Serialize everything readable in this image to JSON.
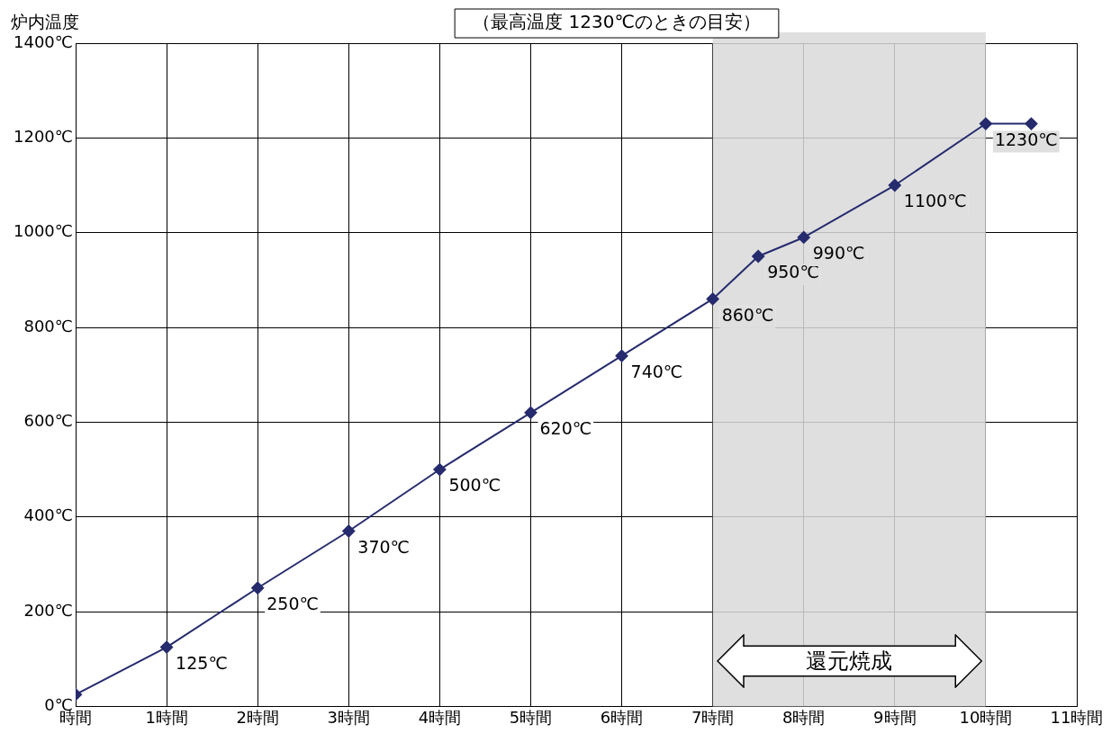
{
  "chart_data": {
    "type": "line",
    "title": "（最高温度 1230℃のときの目安）",
    "ylabel": "炉内温度",
    "x": [
      0,
      1,
      2,
      3,
      4,
      5,
      6,
      7,
      7.5,
      8,
      9,
      10,
      10.5
    ],
    "series": [
      {
        "color": "#262b6e",
        "values": [
          25,
          125,
          250,
          370,
          500,
          620,
          740,
          860,
          950,
          990,
          1100,
          1230,
          1230
        ],
        "value_labels": [
          null,
          "125℃",
          "250℃",
          "370℃",
          "500℃",
          "620℃",
          "740℃",
          "860℃",
          "950℃",
          "990℃",
          "1100℃",
          "1230℃",
          null
        ]
      }
    ],
    "xlim": [
      0,
      11
    ],
    "xticks": [
      {
        "value": 0,
        "label": "時間"
      },
      {
        "value": 1,
        "label": "1時間"
      },
      {
        "value": 2,
        "label": "2時間"
      },
      {
        "value": 3,
        "label": "3時間"
      },
      {
        "value": 4,
        "label": "4時間"
      },
      {
        "value": 5,
        "label": "5時間"
      },
      {
        "value": 6,
        "label": "6時間"
      },
      {
        "value": 7,
        "label": "7時間"
      },
      {
        "value": 8,
        "label": "8時間"
      },
      {
        "value": 9,
        "label": "9時間"
      },
      {
        "value": 10,
        "label": "10時間"
      },
      {
        "value": 11,
        "label": "11時間"
      }
    ],
    "ylim": [
      0,
      1400
    ],
    "yticks": [
      {
        "value": 0,
        "label": "0℃"
      },
      {
        "value": 200,
        "label": "200℃"
      },
      {
        "value": 400,
        "label": "400℃"
      },
      {
        "value": 600,
        "label": "600℃"
      },
      {
        "value": 800,
        "label": "800℃"
      },
      {
        "value": 1000,
        "label": "1000℃"
      },
      {
        "value": 1200,
        "label": "1200℃"
      },
      {
        "value": 1400,
        "label": "1400℃"
      }
    ],
    "bands": [
      {
        "axis": "x",
        "from": 7,
        "to": 10,
        "label": "還元焼成",
        "color": "#d9d9d9"
      }
    ],
    "grid": true,
    "legend": false,
    "marker": "diamond",
    "line_style": "solid"
  }
}
